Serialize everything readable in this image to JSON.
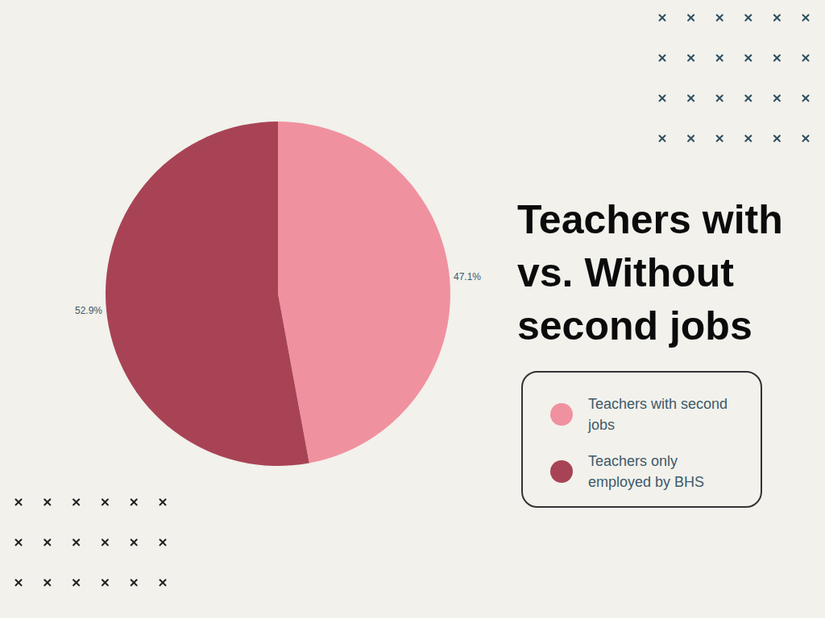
{
  "chart_data": {
    "type": "pie",
    "title": "Teachers with vs. Without second jobs",
    "categories": [
      "Teachers with second jobs",
      "Teachers only employed by BHS"
    ],
    "values": [
      47.1,
      52.9
    ],
    "value_labels": [
      "47.1%",
      "52.9%"
    ],
    "colors": [
      "#f0919f",
      "#a84355"
    ],
    "data_labels": true,
    "legend": "right"
  }
}
